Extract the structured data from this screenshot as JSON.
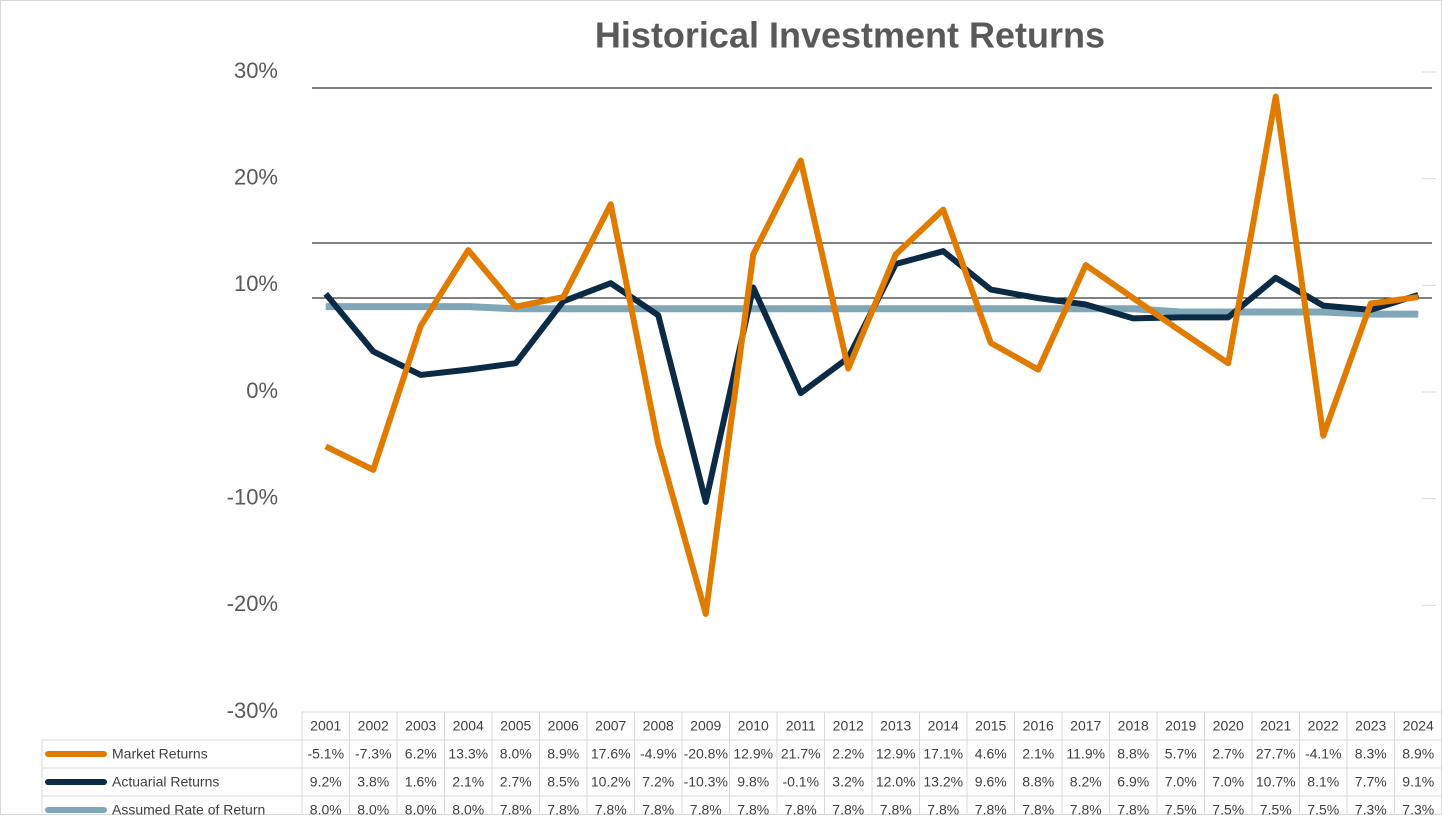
{
  "chart_data": {
    "type": "line",
    "title": "Historical Investment Returns",
    "categories": [
      "2001",
      "2002",
      "2003",
      "2004",
      "2005",
      "2006",
      "2007",
      "2008",
      "2009",
      "2010",
      "2011",
      "2012",
      "2013",
      "2014",
      "2015",
      "2016",
      "2017",
      "2018",
      "2019",
      "2020",
      "2021",
      "2022",
      "2023",
      "2024"
    ],
    "series": [
      {
        "name": "Market Returns",
        "color": "#e07b00",
        "values": [
          -5.1,
          -7.3,
          6.2,
          13.3,
          8.0,
          8.9,
          17.6,
          -4.9,
          -20.8,
          12.9,
          21.7,
          2.2,
          12.9,
          17.1,
          4.6,
          2.1,
          11.9,
          8.8,
          5.7,
          2.7,
          27.7,
          -4.1,
          8.3,
          8.9
        ],
        "value_labels": [
          "-5.1%",
          "-7.3%",
          "6.2%",
          "13.3%",
          "8.0%",
          "8.9%",
          "17.6%",
          "-4.9%",
          "-20.8%",
          "12.9%",
          "21.7%",
          "2.2%",
          "12.9%",
          "17.1%",
          "4.6%",
          "2.1%",
          "11.9%",
          "8.8%",
          "5.7%",
          "2.7%",
          "27.7%",
          "-4.1%",
          "8.3%",
          "8.9%"
        ]
      },
      {
        "name": "Actuarial Returns",
        "color": "#0b2a45",
        "values": [
          9.2,
          3.8,
          1.6,
          2.1,
          2.7,
          8.5,
          10.2,
          7.2,
          -10.3,
          9.8,
          -0.1,
          3.2,
          12.0,
          13.2,
          9.6,
          8.8,
          8.2,
          6.9,
          7.0,
          7.0,
          10.7,
          8.1,
          7.7,
          9.1
        ],
        "value_labels": [
          "9.2%",
          "3.8%",
          "1.6%",
          "2.1%",
          "2.7%",
          "8.5%",
          "10.2%",
          "7.2%",
          "-10.3%",
          "9.8%",
          "-0.1%",
          "3.2%",
          "12.0%",
          "13.2%",
          "9.6%",
          "8.8%",
          "8.2%",
          "6.9%",
          "7.0%",
          "7.0%",
          "10.7%",
          "8.1%",
          "7.7%",
          "9.1%"
        ]
      },
      {
        "name": "Assumed Rate of Return",
        "color": "#7fa7b8",
        "values": [
          8.0,
          8.0,
          8.0,
          8.0,
          7.8,
          7.8,
          7.8,
          7.8,
          7.8,
          7.8,
          7.8,
          7.8,
          7.8,
          7.8,
          7.8,
          7.8,
          7.8,
          7.8,
          7.5,
          7.5,
          7.5,
          7.5,
          7.3,
          7.3
        ],
        "value_labels": [
          "8.0%",
          "8.0%",
          "8.0%",
          "8.0%",
          "7.8%",
          "7.8%",
          "7.8%",
          "7.8%",
          "7.8%",
          "7.8%",
          "7.8%",
          "7.8%",
          "7.8%",
          "7.8%",
          "7.8%",
          "7.8%",
          "7.8%",
          "7.8%",
          "7.5%",
          "7.5%",
          "7.5%",
          "7.5%",
          "7.3%",
          "7.3%"
        ]
      }
    ],
    "ylim": [
      -30,
      30
    ],
    "yticks": [
      {
        "value": -30,
        "label": "-30%"
      },
      {
        "value": -20,
        "label": "-20%"
      },
      {
        "value": -10,
        "label": "-10%"
      },
      {
        "value": 0,
        "label": "0%"
      },
      {
        "value": 10,
        "label": "10%"
      },
      {
        "value": 20,
        "label": "20%"
      },
      {
        "value": 30,
        "label": "30%"
      }
    ],
    "grid": true
  }
}
